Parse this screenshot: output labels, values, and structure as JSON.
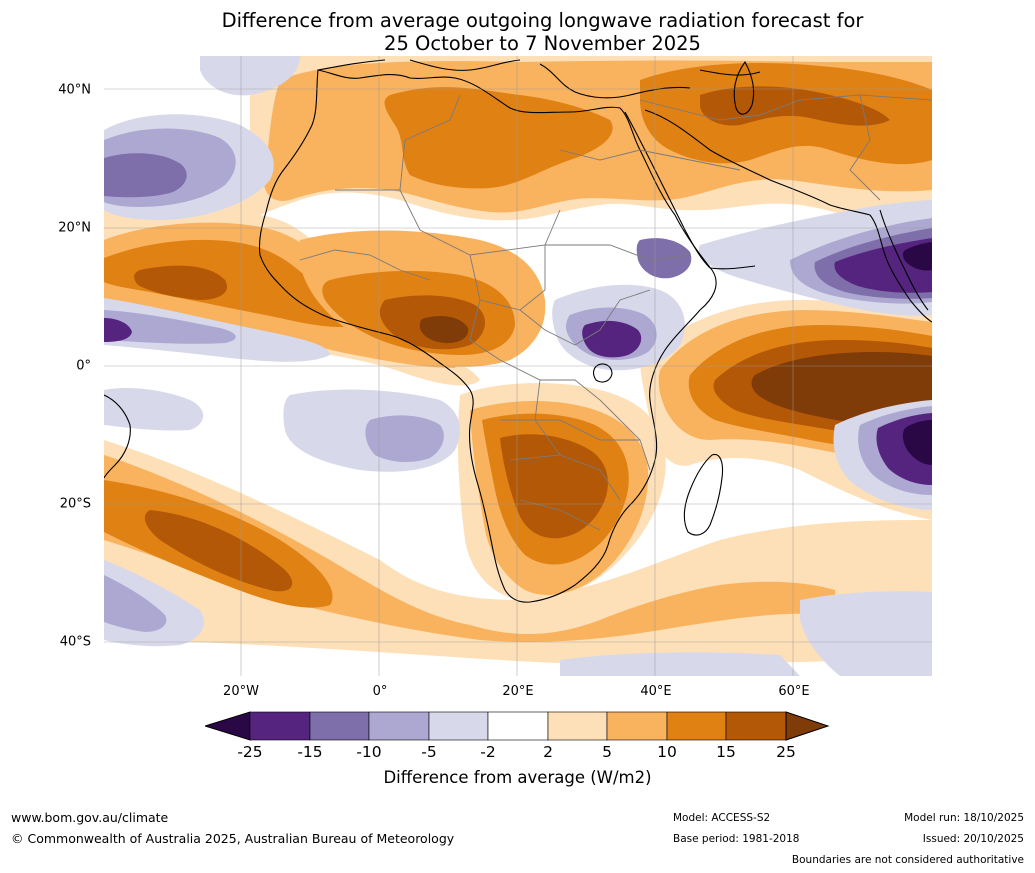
{
  "title": {
    "line1": "Difference from average outgoing longwave radiation forecast for",
    "line2": "25 October to 7 November 2025"
  },
  "map": {
    "region": "Africa and surrounding oceans",
    "lat_labels": [
      "40°N",
      "20°N",
      "0°",
      "20°S",
      "40°S"
    ],
    "lon_labels": [
      "20°W",
      "0°",
      "20°E",
      "40°E",
      "60°E"
    ],
    "colors": {
      "lt_neg25": "#2a0845",
      "neg25_neg15": "#55247f",
      "neg15_neg10": "#7e6ea9",
      "neg10_neg5": "#ada8d1",
      "neg5_neg2": "#d8d8eb",
      "neg2_2": "#ffffff",
      "p2_5": "#fde0b7",
      "p5_10": "#f9b25e",
      "p10_15": "#e08114",
      "p15_25": "#b35806",
      "gt25": "#7f3b08"
    }
  },
  "colorbar": {
    "ticks": [
      "-25",
      "-15",
      "-10",
      "-5",
      "-2",
      "2",
      "5",
      "10",
      "15",
      "25"
    ],
    "label": "Difference from average (W/m2)"
  },
  "footer": {
    "website": "www.bom.gov.au/climate",
    "copyright": "© Commonwealth of Australia 2025, Australian Bureau of Meteorology",
    "model": "Model: ACCESS-S2",
    "base_period": "Base period: 1981-2018",
    "model_run": "Model run: 18/10/2025",
    "issued": "Issued: 20/10/2025",
    "disclaimer": "Boundaries are not considered authoritative"
  }
}
